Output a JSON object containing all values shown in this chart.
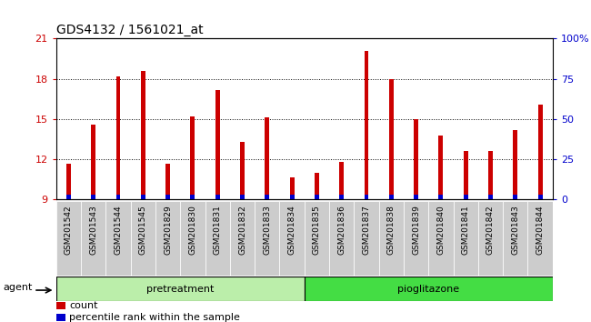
{
  "title": "GDS4132 / 1561021_at",
  "samples": [
    "GSM201542",
    "GSM201543",
    "GSM201544",
    "GSM201545",
    "GSM201829",
    "GSM201830",
    "GSM201831",
    "GSM201832",
    "GSM201833",
    "GSM201834",
    "GSM201835",
    "GSM201836",
    "GSM201837",
    "GSM201838",
    "GSM201839",
    "GSM201840",
    "GSM201841",
    "GSM201842",
    "GSM201843",
    "GSM201844"
  ],
  "count_values": [
    11.7,
    14.6,
    18.2,
    18.6,
    11.7,
    15.2,
    17.2,
    13.3,
    15.15,
    10.65,
    11.0,
    11.8,
    20.1,
    18.0,
    15.0,
    13.8,
    12.6,
    12.6,
    14.2,
    16.1
  ],
  "percentile_values": [
    0.35,
    0.35,
    0.35,
    0.35,
    0.35,
    0.35,
    0.35,
    0.35,
    0.35,
    0.35,
    0.35,
    0.35,
    0.35,
    0.35,
    0.35,
    0.35,
    0.35,
    0.35,
    0.35,
    0.35
  ],
  "bar_bottom": 9.0,
  "ylim_left": [
    9,
    21
  ],
  "ylim_right": [
    0,
    100
  ],
  "yticks_left": [
    9,
    12,
    15,
    18,
    21
  ],
  "yticks_right": [
    0,
    25,
    50,
    75,
    100
  ],
  "ytick_labels_right": [
    "0",
    "25",
    "50",
    "75",
    "100%"
  ],
  "grid_values": [
    12,
    15,
    18
  ],
  "red_color": "#cc0000",
  "blue_color": "#0000cc",
  "xticklabel_bg": "#cccccc",
  "group1_label": "pretreatment",
  "group2_label": "pioglitazone",
  "group1_color": "#bbeeaa",
  "group2_color": "#44dd44",
  "group1_count": 10,
  "group2_count": 10,
  "agent_label": "agent",
  "legend_count_label": "count",
  "legend_percentile_label": "percentile rank within the sample",
  "red_bar_width": 0.18,
  "blue_bar_width": 0.18
}
